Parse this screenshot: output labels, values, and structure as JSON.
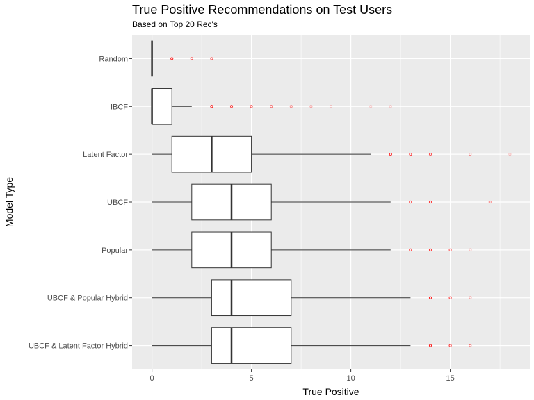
{
  "chart_data": {
    "type": "boxplot",
    "title": "True Positive Recommendations on Test Users",
    "subtitle": "Based on Top 20 Rec's",
    "xlabel": "True Positive",
    "ylabel": "Model Type",
    "xlim": [
      -1,
      19
    ],
    "x_ticks": [
      0,
      5,
      10,
      15
    ],
    "orientation": "horizontal",
    "grid": true,
    "colors": {
      "panel": "#ebebeb",
      "grid": "#ffffff",
      "box_fill": "#ffffff",
      "box_line": "#333333",
      "outlier": "#ff0000"
    },
    "categories": [
      "Random",
      "IBCF",
      "Latent Factor",
      "UBCF",
      "Popular",
      "UBCF & Popular Hybrid",
      "UBCF & Latent Factor Hybrid"
    ],
    "boxes": [
      {
        "name": "Random",
        "min": 0,
        "q1": 0,
        "median": 0,
        "q3": 0,
        "max": 0,
        "outliers": [
          1,
          2,
          3
        ]
      },
      {
        "name": "IBCF",
        "min": 0,
        "q1": 0,
        "median": 0,
        "q3": 1,
        "max": 2,
        "outliers": [
          3,
          4,
          5,
          6,
          7,
          8,
          9,
          11,
          12
        ]
      },
      {
        "name": "Latent Factor",
        "min": 0,
        "q1": 1,
        "median": 3,
        "q3": 5,
        "max": 11,
        "outliers": [
          12,
          13,
          14,
          16,
          18
        ]
      },
      {
        "name": "UBCF",
        "min": 0,
        "q1": 2,
        "median": 4,
        "q3": 6,
        "max": 12,
        "outliers": [
          13,
          14,
          17
        ]
      },
      {
        "name": "Popular",
        "min": 0,
        "q1": 2,
        "median": 4,
        "q3": 6,
        "max": 12,
        "outliers": [
          13,
          14,
          15,
          16
        ]
      },
      {
        "name": "UBCF & Popular Hybrid",
        "min": 0,
        "q1": 3,
        "median": 4,
        "q3": 7,
        "max": 13,
        "outliers": [
          14,
          15,
          16
        ]
      },
      {
        "name": "UBCF & Latent Factor Hybrid",
        "min": 0,
        "q1": 3,
        "median": 4,
        "q3": 7,
        "max": 13,
        "outliers": [
          14,
          15,
          16
        ]
      }
    ]
  }
}
